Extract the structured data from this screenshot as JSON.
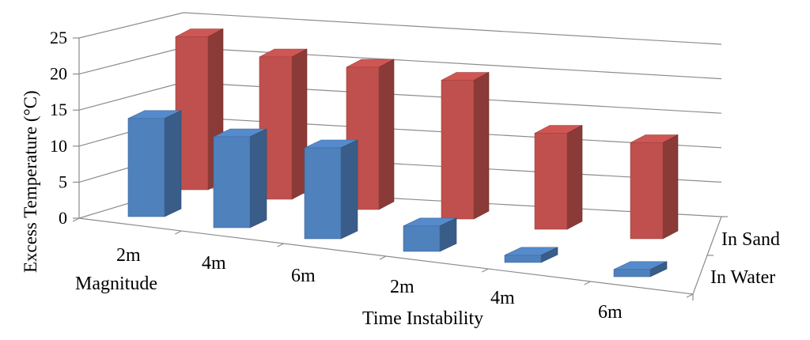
{
  "chart_data": {
    "type": "bar",
    "subtype": "3d-column",
    "categories": [
      "2m",
      "4m",
      "6m",
      "2m",
      "4m",
      "6m"
    ],
    "category_groups": [
      "Magnitude",
      "Time Instability"
    ],
    "series": [
      {
        "name": "In Water",
        "values": [
          13.5,
          12.5,
          12.5,
          3.5,
          1.0,
          1.0
        ]
      },
      {
        "name": "In Sand",
        "values": [
          21.5,
          20.0,
          20.0,
          19.5,
          13.5,
          13.5
        ]
      }
    ],
    "ylabel": "Excess Temperature  (°C)",
    "yticks": [
      "0",
      "5",
      "10",
      "15",
      "20",
      "25"
    ],
    "ylim": [
      0,
      25
    ],
    "grid": true,
    "colors": {
      "In Water": "#4f81bd",
      "In Sand": "#c0504d"
    }
  }
}
